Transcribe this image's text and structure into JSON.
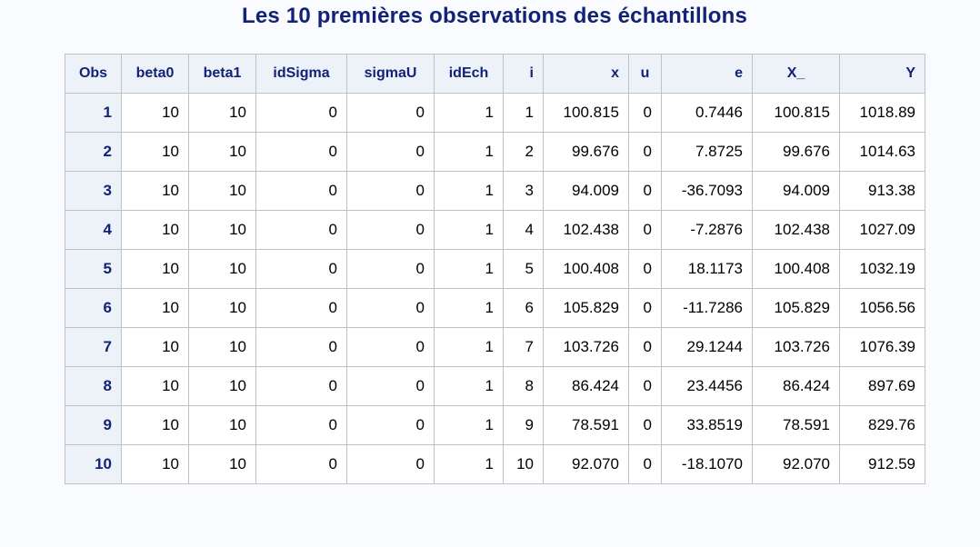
{
  "title": "Les 10 premières observations des échantillons",
  "columns": [
    "Obs",
    "beta0",
    "beta1",
    "idSigma",
    "sigmaU",
    "idEch",
    "i",
    "x",
    "u",
    "e",
    "X_",
    "Y"
  ],
  "rows": [
    [
      "1",
      "10",
      "10",
      "0",
      "0",
      "1",
      "1",
      "100.815",
      "0",
      "0.7446",
      "100.815",
      "1018.89"
    ],
    [
      "2",
      "10",
      "10",
      "0",
      "0",
      "1",
      "2",
      "99.676",
      "0",
      "7.8725",
      "99.676",
      "1014.63"
    ],
    [
      "3",
      "10",
      "10",
      "0",
      "0",
      "1",
      "3",
      "94.009",
      "0",
      "-36.7093",
      "94.009",
      "913.38"
    ],
    [
      "4",
      "10",
      "10",
      "0",
      "0",
      "1",
      "4",
      "102.438",
      "0",
      "-7.2876",
      "102.438",
      "1027.09"
    ],
    [
      "5",
      "10",
      "10",
      "0",
      "0",
      "1",
      "5",
      "100.408",
      "0",
      "18.1173",
      "100.408",
      "1032.19"
    ],
    [
      "6",
      "10",
      "10",
      "0",
      "0",
      "1",
      "6",
      "105.829",
      "0",
      "-11.7286",
      "105.829",
      "1056.56"
    ],
    [
      "7",
      "10",
      "10",
      "0",
      "0",
      "1",
      "7",
      "103.726",
      "0",
      "29.1244",
      "103.726",
      "1076.39"
    ],
    [
      "8",
      "10",
      "10",
      "0",
      "0",
      "1",
      "8",
      "86.424",
      "0",
      "23.4456",
      "86.424",
      "897.69"
    ],
    [
      "9",
      "10",
      "10",
      "0",
      "0",
      "1",
      "9",
      "78.591",
      "0",
      "33.8519",
      "78.591",
      "829.76"
    ],
    [
      "10",
      "10",
      "10",
      "0",
      "0",
      "1",
      "10",
      "92.070",
      "0",
      "-18.1070",
      "92.070",
      "912.59"
    ]
  ]
}
